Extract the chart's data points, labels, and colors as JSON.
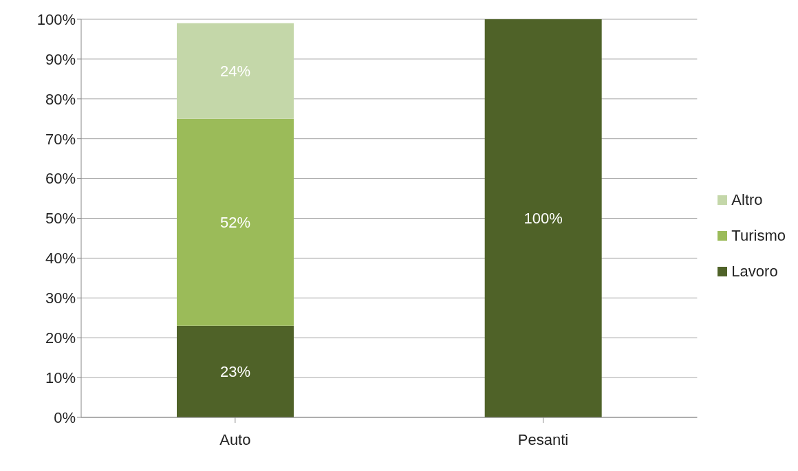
{
  "chart_data": {
    "type": "bar",
    "stacked": true,
    "categories": [
      "Auto",
      "Pesanti"
    ],
    "series": [
      {
        "name": "Lavoro",
        "color": "#4f6228",
        "values": [
          23,
          100
        ],
        "value_labels": [
          "23%",
          "100%"
        ]
      },
      {
        "name": "Turismo",
        "color": "#9bbb59",
        "values": [
          52,
          null
        ],
        "value_labels": [
          "52%",
          null
        ]
      },
      {
        "name": "Altro",
        "color": "#c4d7a9",
        "values": [
          24,
          null
        ],
        "value_labels": [
          "24%",
          null
        ]
      }
    ],
    "ylim": [
      0,
      100
    ],
    "yticks": [
      {
        "value": 0,
        "label": "0%"
      },
      {
        "value": 10,
        "label": "10%"
      },
      {
        "value": 20,
        "label": "20%"
      },
      {
        "value": 30,
        "label": "30%"
      },
      {
        "value": 40,
        "label": "40%"
      },
      {
        "value": 50,
        "label": "50%"
      },
      {
        "value": 60,
        "label": "60%"
      },
      {
        "value": 70,
        "label": "70%"
      },
      {
        "value": 80,
        "label": "80%"
      },
      {
        "value": 90,
        "label": "90%"
      },
      {
        "value": 100,
        "label": "100%"
      }
    ],
    "grid": "y",
    "legend": "right"
  }
}
